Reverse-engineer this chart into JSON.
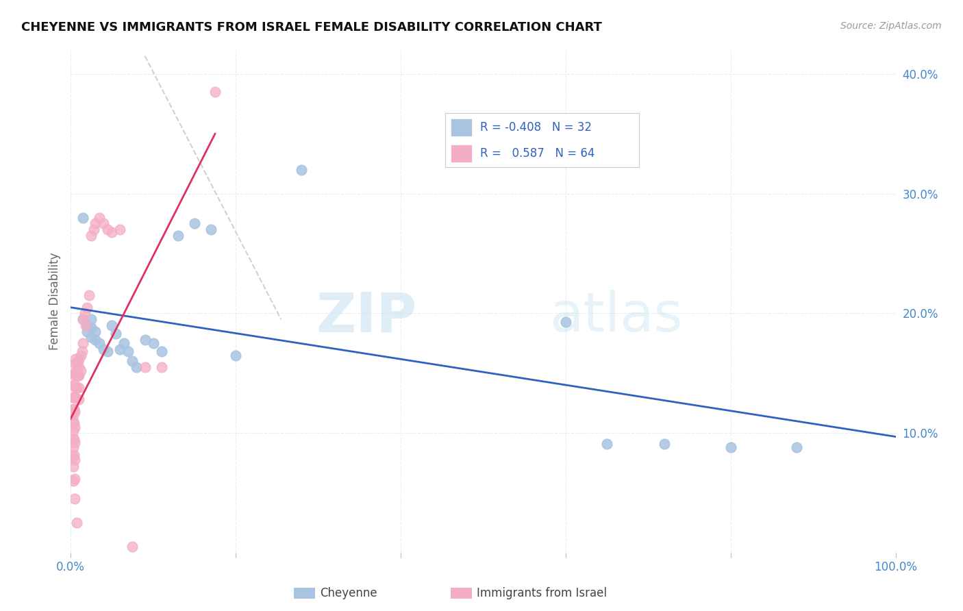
{
  "title": "CHEYENNE VS IMMIGRANTS FROM ISRAEL FEMALE DISABILITY CORRELATION CHART",
  "source": "Source: ZipAtlas.com",
  "ylabel": "Female Disability",
  "xlim": [
    0.0,
    1.0
  ],
  "ylim": [
    0.0,
    0.42
  ],
  "x_ticks": [
    0.0,
    0.2,
    0.4,
    0.6,
    0.8,
    1.0
  ],
  "x_tick_labels": [
    "0.0%",
    "",
    "",
    "",
    "",
    "100.0%"
  ],
  "y_ticks": [
    0.1,
    0.2,
    0.3,
    0.4
  ],
  "y_tick_labels": [
    "10.0%",
    "20.0%",
    "30.0%",
    "40.0%"
  ],
  "blue_color": "#a8c4e0",
  "pink_color": "#f4aec4",
  "trendline_blue_color": "#3060c0",
  "trendline_pink_color": "#e03060",
  "trendline_ref_color": "#cccccc",
  "watermark_zip": "ZIP",
  "watermark_atlas": "atlas",
  "blue_scatter_x": [
    0.015,
    0.015,
    0.02,
    0.02,
    0.025,
    0.025,
    0.025,
    0.03,
    0.03,
    0.035,
    0.04,
    0.045,
    0.05,
    0.055,
    0.06,
    0.065,
    0.07,
    0.075,
    0.08,
    0.09,
    0.1,
    0.11,
    0.13,
    0.15,
    0.17,
    0.2,
    0.28,
    0.6,
    0.65,
    0.72,
    0.8,
    0.88
  ],
  "blue_scatter_y": [
    0.28,
    0.195,
    0.19,
    0.185,
    0.195,
    0.188,
    0.18,
    0.185,
    0.178,
    0.175,
    0.17,
    0.168,
    0.19,
    0.183,
    0.17,
    0.175,
    0.168,
    0.16,
    0.155,
    0.178,
    0.175,
    0.168,
    0.265,
    0.275,
    0.27,
    0.165,
    0.32,
    0.193,
    0.091,
    0.091,
    0.088,
    0.088
  ],
  "pink_scatter_x": [
    0.003,
    0.003,
    0.003,
    0.003,
    0.003,
    0.003,
    0.003,
    0.003,
    0.003,
    0.003,
    0.004,
    0.004,
    0.004,
    0.004,
    0.004,
    0.004,
    0.004,
    0.005,
    0.005,
    0.005,
    0.005,
    0.005,
    0.005,
    0.005,
    0.005,
    0.005,
    0.005,
    0.006,
    0.006,
    0.006,
    0.007,
    0.007,
    0.007,
    0.007,
    0.008,
    0.008,
    0.009,
    0.009,
    0.01,
    0.01,
    0.01,
    0.01,
    0.01,
    0.012,
    0.012,
    0.014,
    0.015,
    0.015,
    0.017,
    0.018,
    0.02,
    0.022,
    0.025,
    0.028,
    0.03,
    0.035,
    0.04,
    0.045,
    0.05,
    0.06,
    0.075,
    0.09,
    0.11,
    0.175
  ],
  "pink_scatter_y": [
    0.13,
    0.12,
    0.115,
    0.11,
    0.102,
    0.095,
    0.088,
    0.08,
    0.072,
    0.06,
    0.15,
    0.14,
    0.13,
    0.12,
    0.108,
    0.095,
    0.082,
    0.158,
    0.148,
    0.14,
    0.13,
    0.118,
    0.105,
    0.092,
    0.078,
    0.062,
    0.045,
    0.162,
    0.15,
    0.138,
    0.158,
    0.148,
    0.138,
    0.025,
    0.158,
    0.148,
    0.16,
    0.148,
    0.162,
    0.155,
    0.148,
    0.138,
    0.128,
    0.165,
    0.152,
    0.168,
    0.195,
    0.175,
    0.2,
    0.19,
    0.205,
    0.215,
    0.265,
    0.27,
    0.275,
    0.28,
    0.275,
    0.27,
    0.268,
    0.27,
    0.005,
    0.155,
    0.155,
    0.385
  ],
  "blue_trend_x": [
    0.0,
    1.0
  ],
  "blue_trend_y": [
    0.205,
    0.097
  ],
  "pink_trend_x": [
    0.0,
    0.175
  ],
  "pink_trend_y": [
    0.112,
    0.35
  ],
  "ref_line_x": [
    0.09,
    0.255
  ],
  "ref_line_y": [
    0.415,
    0.195
  ]
}
